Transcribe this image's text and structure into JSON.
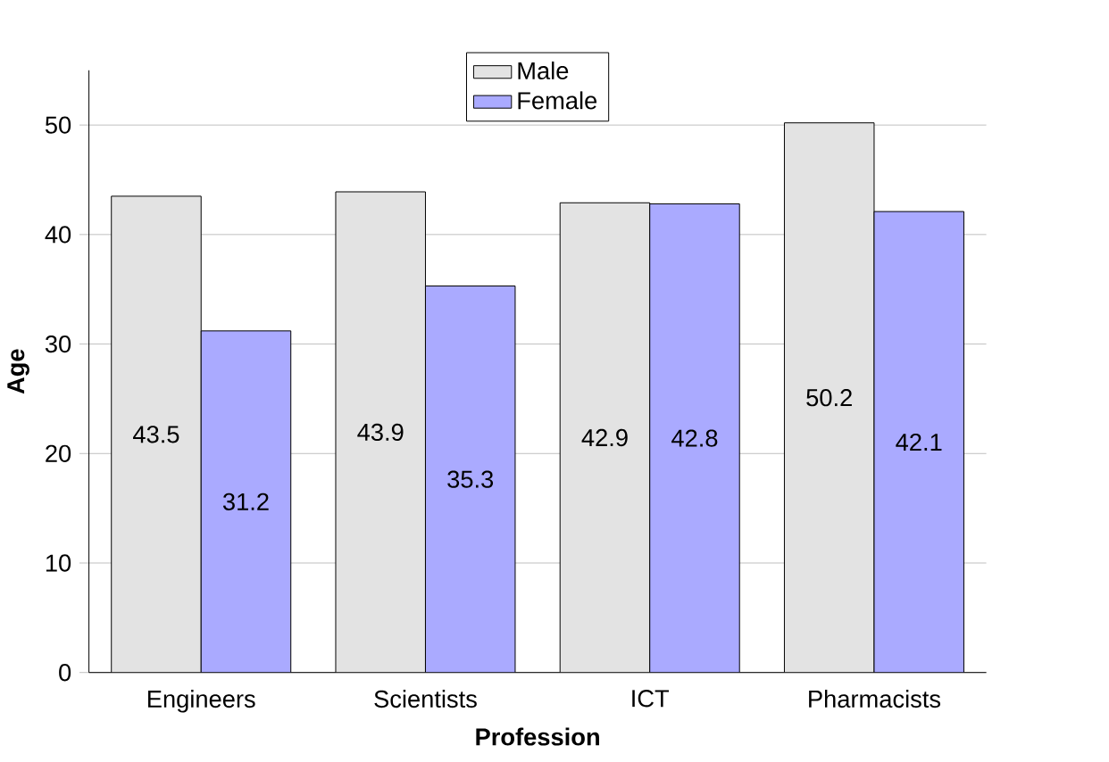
{
  "chart_data": {
    "type": "bar",
    "xlabel": "Profession",
    "ylabel": "Age",
    "categories": [
      "Engineers",
      "Scientists",
      "ICT",
      "Pharmacists"
    ],
    "series": [
      {
        "name": "Male",
        "color": "#e3e3e3",
        "values": [
          43.5,
          43.9,
          42.9,
          50.2
        ]
      },
      {
        "name": "Female",
        "color": "#aaaaff",
        "values": [
          31.2,
          35.3,
          42.8,
          42.1
        ]
      }
    ],
    "ylim": [
      0,
      55
    ],
    "yticks": [
      0,
      10,
      20,
      30,
      40,
      50
    ],
    "grid": "y",
    "legend": "top",
    "data_labels": true
  }
}
